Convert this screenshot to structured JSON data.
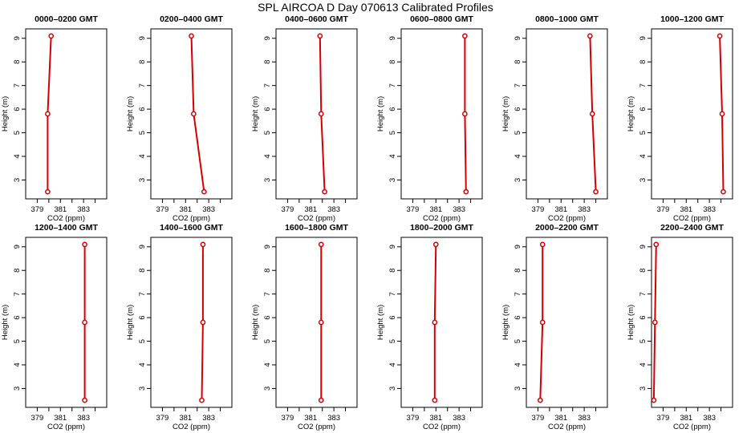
{
  "page": {
    "title": "SPL AIRCOA D  Day 070613  Calibrated Profiles",
    "line_color": "#d40000"
  },
  "chart_data": [
    {
      "type": "line",
      "title": "0000–0200 GMT",
      "xlabel": "CO2 (ppm)",
      "ylabel": "Height (m)",
      "xlim": [
        378,
        385
      ],
      "ylim": [
        2.2,
        9.4
      ],
      "x_ticks": [
        "379",
        "381",
        "383"
      ],
      "y_ticks": [
        "3",
        "4",
        "5",
        "6",
        "7",
        "8",
        "9"
      ],
      "series": [
        {
          "x": [
            379.9,
            379.9,
            380.2
          ],
          "y": [
            2.5,
            5.8,
            9.1
          ]
        }
      ]
    },
    {
      "type": "line",
      "title": "0200–0400 GMT",
      "xlabel": "CO2 (ppm)",
      "ylabel": "Height (m)",
      "xlim": [
        378,
        385
      ],
      "ylim": [
        2.2,
        9.4
      ],
      "x_ticks": [
        "379",
        "381",
        "383"
      ],
      "y_ticks": [
        "3",
        "4",
        "5",
        "6",
        "7",
        "8",
        "9"
      ],
      "series": [
        {
          "x": [
            382.6,
            381.7,
            381.5
          ],
          "y": [
            2.5,
            5.8,
            9.1
          ]
        }
      ]
    },
    {
      "type": "line",
      "title": "0400–0600 GMT",
      "xlabel": "CO2 (ppm)",
      "ylabel": "Height (m)",
      "xlim": [
        378,
        385
      ],
      "ylim": [
        2.2,
        9.4
      ],
      "x_ticks": [
        "379",
        "381",
        "383"
      ],
      "y_ticks": [
        "3",
        "4",
        "5",
        "6",
        "7",
        "8",
        "9"
      ],
      "series": [
        {
          "x": [
            382.2,
            381.9,
            381.8
          ],
          "y": [
            2.5,
            5.8,
            9.1
          ]
        }
      ]
    },
    {
      "type": "line",
      "title": "0600–0800 GMT",
      "xlabel": "CO2 (ppm)",
      "ylabel": "Height (m)",
      "xlim": [
        378,
        385
      ],
      "ylim": [
        2.2,
        9.4
      ],
      "x_ticks": [
        "379",
        "381",
        "383"
      ],
      "y_ticks": [
        "3",
        "4",
        "5",
        "6",
        "7",
        "8",
        "9"
      ],
      "series": [
        {
          "x": [
            383.6,
            383.5,
            383.5
          ],
          "y": [
            2.5,
            5.8,
            9.1
          ]
        }
      ]
    },
    {
      "type": "line",
      "title": "0800–1000 GMT",
      "xlabel": "CO2 (ppm)",
      "ylabel": "Height (m)",
      "xlim": [
        378,
        385
      ],
      "ylim": [
        2.2,
        9.4
      ],
      "x_ticks": [
        "379",
        "381",
        "383"
      ],
      "y_ticks": [
        "3",
        "4",
        "5",
        "6",
        "7",
        "8",
        "9"
      ],
      "series": [
        {
          "x": [
            384.0,
            383.7,
            383.5
          ],
          "y": [
            2.5,
            5.8,
            9.1
          ]
        }
      ]
    },
    {
      "type": "line",
      "title": "1000–1200 GMT",
      "xlabel": "CO2 (ppm)",
      "ylabel": "Height (m)",
      "xlim": [
        378,
        385
      ],
      "ylim": [
        2.2,
        9.4
      ],
      "x_ticks": [
        "379",
        "381",
        "383"
      ],
      "y_ticks": [
        "3",
        "4",
        "5",
        "6",
        "7",
        "8",
        "9"
      ],
      "series": [
        {
          "x": [
            384.2,
            384.1,
            383.9
          ],
          "y": [
            2.5,
            5.8,
            9.1
          ]
        }
      ]
    },
    {
      "type": "line",
      "title": "1200–1400 GMT",
      "xlabel": "CO2 (ppm)",
      "ylabel": "Height (m)",
      "xlim": [
        378,
        385
      ],
      "ylim": [
        2.2,
        9.4
      ],
      "x_ticks": [
        "379",
        "381",
        "383"
      ],
      "y_ticks": [
        "3",
        "4",
        "5",
        "6",
        "7",
        "8",
        "9"
      ],
      "series": [
        {
          "x": [
            383.1,
            383.1,
            383.1
          ],
          "y": [
            2.5,
            5.8,
            9.1
          ]
        }
      ]
    },
    {
      "type": "line",
      "title": "1400–1600 GMT",
      "xlabel": "CO2 (ppm)",
      "ylabel": "Height (m)",
      "xlim": [
        378,
        385
      ],
      "ylim": [
        2.2,
        9.4
      ],
      "x_ticks": [
        "379",
        "381",
        "383"
      ],
      "y_ticks": [
        "3",
        "4",
        "5",
        "6",
        "7",
        "8",
        "9"
      ],
      "series": [
        {
          "x": [
            382.4,
            382.5,
            382.5
          ],
          "y": [
            2.5,
            5.8,
            9.1
          ]
        }
      ]
    },
    {
      "type": "line",
      "title": "1600–1800 GMT",
      "xlabel": "CO2 (ppm)",
      "ylabel": "Height (m)",
      "xlim": [
        378,
        385
      ],
      "ylim": [
        2.2,
        9.4
      ],
      "x_ticks": [
        "379",
        "381",
        "383"
      ],
      "y_ticks": [
        "3",
        "4",
        "5",
        "6",
        "7",
        "8",
        "9"
      ],
      "series": [
        {
          "x": [
            381.9,
            381.9,
            381.9
          ],
          "y": [
            2.5,
            5.8,
            9.1
          ]
        }
      ]
    },
    {
      "type": "line",
      "title": "1800–2000 GMT",
      "xlabel": "CO2 (ppm)",
      "ylabel": "Height (m)",
      "xlim": [
        378,
        385
      ],
      "ylim": [
        2.2,
        9.4
      ],
      "x_ticks": [
        "379",
        "381",
        "383"
      ],
      "y_ticks": [
        "3",
        "4",
        "5",
        "6",
        "7",
        "8",
        "9"
      ],
      "series": [
        {
          "x": [
            380.9,
            380.9,
            381.0
          ],
          "y": [
            2.5,
            5.8,
            9.1
          ]
        }
      ]
    },
    {
      "type": "line",
      "title": "2000–2200 GMT",
      "xlabel": "CO2 (ppm)",
      "ylabel": "Height (m)",
      "xlim": [
        378,
        385
      ],
      "ylim": [
        2.2,
        9.4
      ],
      "x_ticks": [
        "379",
        "381",
        "383"
      ],
      "y_ticks": [
        "3",
        "4",
        "5",
        "6",
        "7",
        "8",
        "9"
      ],
      "series": [
        {
          "x": [
            379.2,
            379.4,
            379.4
          ],
          "y": [
            2.5,
            5.8,
            9.1
          ]
        }
      ]
    },
    {
      "type": "line",
      "title": "2200–2400 GMT",
      "xlabel": "CO2 (ppm)",
      "ylabel": "Height (m)",
      "xlim": [
        378,
        385
      ],
      "ylim": [
        2.2,
        9.4
      ],
      "x_ticks": [
        "379",
        "381",
        "383"
      ],
      "y_ticks": [
        "3",
        "4",
        "5",
        "6",
        "7",
        "8",
        "9"
      ],
      "series": [
        {
          "x": [
            378.2,
            378.3,
            378.4
          ],
          "y": [
            2.5,
            5.8,
            9.1
          ]
        }
      ]
    }
  ]
}
